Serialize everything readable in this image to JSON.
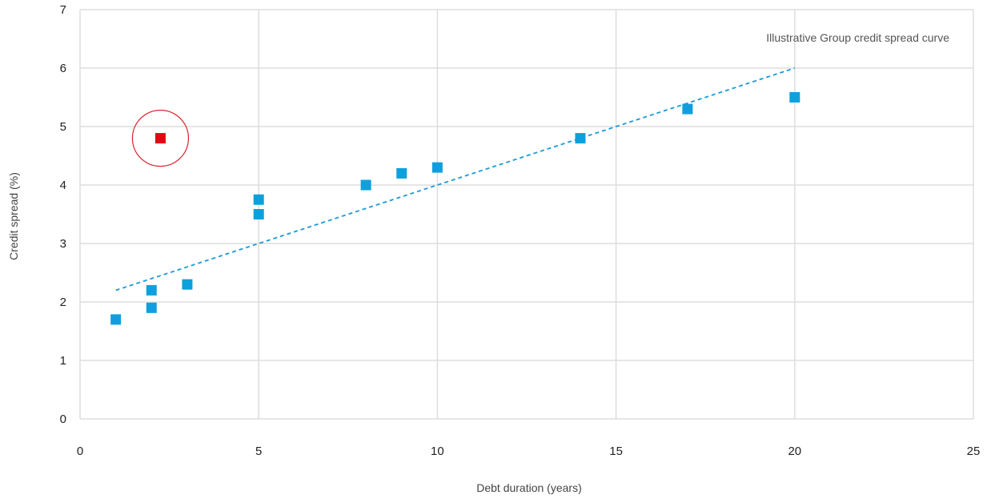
{
  "chart_data": {
    "type": "scatter",
    "xlabel": "Debt duration (years)",
    "ylabel": "Credit spread (%)",
    "xlim": [
      0,
      25
    ],
    "ylim": [
      0,
      7
    ],
    "x_ticks": [
      "0",
      "5",
      "10",
      "15",
      "20",
      "25"
    ],
    "y_ticks": [
      "0",
      "1",
      "2",
      "3",
      "4",
      "5",
      "6",
      "7"
    ],
    "grid": true,
    "annotation": "Illustrative Group credit spread curve",
    "series": [
      {
        "color": "#0ea0dc",
        "marker": "square",
        "points": [
          {
            "x": 1,
            "y": 1.7
          },
          {
            "x": 2,
            "y": 1.9
          },
          {
            "x": 2,
            "y": 2.2
          },
          {
            "x": 3,
            "y": 2.3
          },
          {
            "x": 5,
            "y": 3.5
          },
          {
            "x": 5,
            "y": 3.75
          },
          {
            "x": 8,
            "y": 4.0
          },
          {
            "x": 9,
            "y": 4.2
          },
          {
            "x": 10,
            "y": 4.3
          },
          {
            "x": 14,
            "y": 4.8
          },
          {
            "x": 17,
            "y": 5.3
          },
          {
            "x": 20,
            "y": 5.5
          }
        ]
      },
      {
        "color": "#e30613",
        "marker": "square",
        "highlighted": true,
        "highlight_color": "#d9262e",
        "points": [
          {
            "x": 2.25,
            "y": 4.8
          }
        ]
      }
    ],
    "trendline": {
      "color": "#1a9ad6",
      "style": "dashed",
      "points": [
        {
          "x": 1,
          "y": 2.2
        },
        {
          "x": 20,
          "y": 6.0
        }
      ]
    }
  }
}
